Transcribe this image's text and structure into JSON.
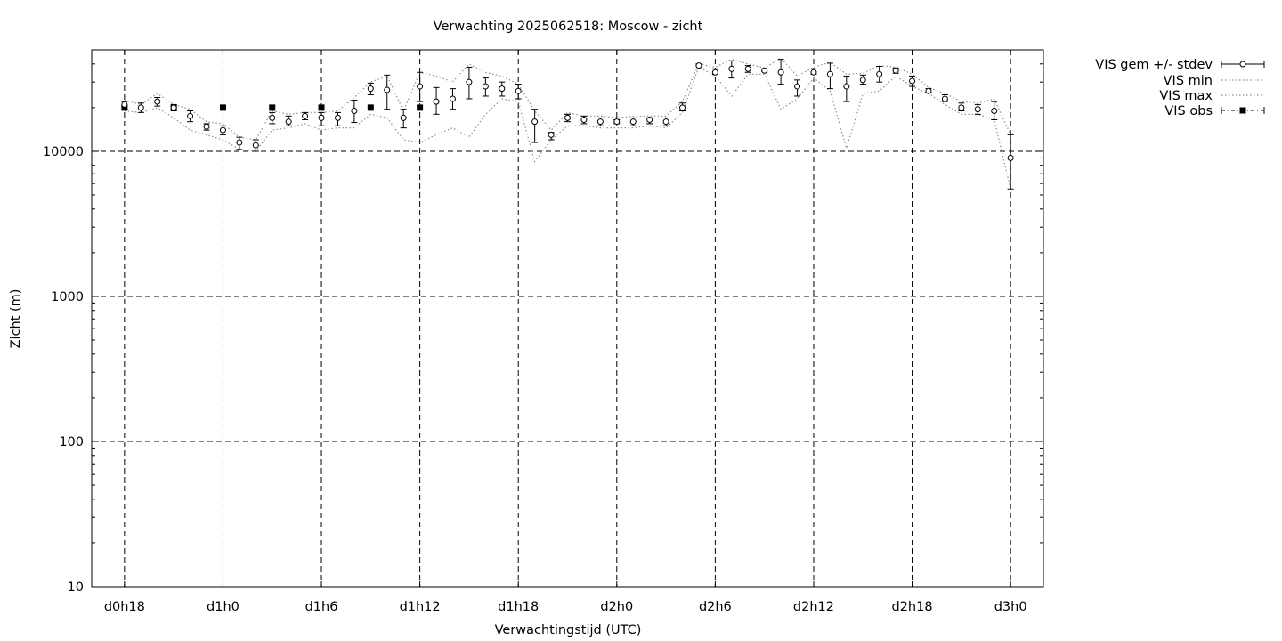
{
  "chart_data": {
    "type": "scatter",
    "title": "Verwachting 2025062518: Moscow - zicht",
    "xlabel": "Verwachtingstijd (UTC)",
    "ylabel": "Zicht (m)",
    "yscale": "log",
    "ylim": [
      10,
      50000
    ],
    "xlim": [
      -1,
      28
    ],
    "grid": true,
    "legend_position": "outside-top-right",
    "x_ticks": [
      {
        "x": 0,
        "label": "d0h18"
      },
      {
        "x": 3,
        "label": "d1h0"
      },
      {
        "x": 6,
        "label": "d1h6"
      },
      {
        "x": 9,
        "label": "d1h12"
      },
      {
        "x": 12,
        "label": "d1h18"
      },
      {
        "x": 15,
        "label": "d2h0"
      },
      {
        "x": 18,
        "label": "d2h6"
      },
      {
        "x": 21,
        "label": "d2h12"
      },
      {
        "x": 24,
        "label": "d2h18"
      },
      {
        "x": 27,
        "label": "d3h0"
      }
    ],
    "y_ticks": [
      {
        "y": 10,
        "label": "10"
      },
      {
        "y": 100,
        "label": "100"
      },
      {
        "y": 1000,
        "label": "1000"
      },
      {
        "y": 10000,
        "label": "10000"
      }
    ],
    "series": [
      {
        "name": "VIS gem +/- stdev",
        "style": "errorbars-open-circle",
        "x": [
          0,
          0.5,
          1,
          1.5,
          2,
          2.5,
          3,
          3.5,
          4,
          4.5,
          5,
          5.5,
          6,
          6.5,
          7,
          7.5,
          8,
          8.5,
          9,
          9.5,
          10,
          10.5,
          11,
          11.5,
          12,
          12.5,
          13,
          13.5,
          14,
          14.5,
          15,
          15.5,
          16,
          16.5,
          17,
          17.5,
          18,
          18.5,
          19,
          19.5,
          20,
          20.5,
          21,
          21.5,
          22,
          22.5,
          23,
          23.5,
          24,
          24.5,
          25,
          25.5,
          26,
          26.5,
          27
        ],
        "y": [
          21000,
          20000,
          22000,
          20000,
          17500,
          14800,
          14000,
          11500,
          11000,
          17000,
          16000,
          17500,
          17000,
          17000,
          19000,
          27000,
          26500,
          17000,
          28000,
          22000,
          23000,
          30000,
          28000,
          27000,
          26000,
          16000,
          13000,
          17000,
          16500,
          16000,
          16000,
          16000,
          16500,
          16000,
          20000,
          39000,
          35000,
          37000,
          37000,
          36000,
          35000,
          28000,
          35000,
          34000,
          28000,
          31000,
          34000,
          36000,
          30500,
          26000,
          23000,
          20000,
          19500,
          19000,
          9000
        ],
        "stdev_low": [
          19500,
          18500,
          20500,
          19000,
          16000,
          14000,
          13000,
          10300,
          10000,
          15500,
          15000,
          16500,
          15000,
          15000,
          15800,
          24500,
          19500,
          14500,
          22000,
          18000,
          19500,
          23000,
          24000,
          24000,
          23000,
          11500,
          12000,
          16000,
          15500,
          15000,
          15500,
          15000,
          15500,
          15000,
          19000,
          38500,
          34000,
          32000,
          35000,
          35500,
          29000,
          24000,
          34000,
          27000,
          22000,
          29000,
          30000,
          34500,
          28000,
          25500,
          22000,
          19000,
          18000,
          16500,
          5500
        ],
        "stdev_high": [
          22000,
          21500,
          23500,
          21000,
          19000,
          15500,
          15000,
          12500,
          12000,
          18500,
          17500,
          18500,
          18500,
          18500,
          22500,
          29500,
          33500,
          19500,
          35000,
          27500,
          27000,
          38000,
          32000,
          30000,
          29000,
          19500,
          13500,
          18000,
          17500,
          17000,
          16500,
          17000,
          17000,
          17000,
          21500,
          40000,
          37000,
          42000,
          39000,
          37000,
          43000,
          31000,
          37000,
          40500,
          33000,
          33500,
          38500,
          37500,
          33000,
          27000,
          24500,
          21500,
          21000,
          22000,
          13000
        ]
      },
      {
        "name": "VIS min",
        "style": "dotted",
        "x": [
          0,
          0.5,
          1,
          1.5,
          2,
          2.5,
          3,
          3.5,
          4,
          4.5,
          5,
          5.5,
          6,
          6.5,
          7,
          7.5,
          8,
          8.5,
          9,
          9.5,
          10,
          10.5,
          11,
          11.5,
          12,
          12.5,
          13,
          13.5,
          14,
          14.5,
          15,
          15.5,
          16,
          16.5,
          17,
          17.5,
          18,
          18.5,
          19,
          19.5,
          20,
          20.5,
          21,
          21.5,
          22,
          22.5,
          23,
          23.5,
          24,
          24.5,
          25,
          25.5,
          26,
          26.5,
          27
        ],
        "y": [
          19000,
          18500,
          20000,
          17000,
          14000,
          13000,
          12000,
          10300,
          10000,
          14000,
          14500,
          15500,
          14000,
          14500,
          14500,
          18000,
          17000,
          12000,
          11500,
          13000,
          14500,
          12500,
          18000,
          23000,
          22000,
          8500,
          12000,
          15000,
          15000,
          14500,
          14500,
          14500,
          15000,
          14500,
          18500,
          38000,
          33000,
          24000,
          34000,
          34000,
          19500,
          23000,
          32000,
          26000,
          10500,
          25000,
          26000,
          33000,
          28000,
          25000,
          21000,
          18000,
          18000,
          16500,
          5500
        ]
      },
      {
        "name": "VIS max",
        "style": "dotted",
        "x": [
          0,
          0.5,
          1,
          1.5,
          2,
          2.5,
          3,
          3.5,
          4,
          4.5,
          5,
          5.5,
          6,
          6.5,
          7,
          7.5,
          8,
          8.5,
          9,
          9.5,
          10,
          10.5,
          11,
          11.5,
          12,
          12.5,
          13,
          13.5,
          14,
          14.5,
          15,
          15.5,
          16,
          16.5,
          17,
          17.5,
          18,
          18.5,
          19,
          19.5,
          20,
          20.5,
          21,
          21.5,
          22,
          22.5,
          23,
          23.5,
          24,
          24.5,
          25,
          25.5,
          26,
          26.5,
          27
        ],
        "y": [
          22500,
          21000,
          25000,
          21000,
          19500,
          16000,
          15500,
          12500,
          12000,
          19000,
          18000,
          18500,
          18500,
          19000,
          23500,
          30000,
          33000,
          19000,
          35000,
          33000,
          30000,
          40000,
          35000,
          33000,
          29000,
          19000,
          14000,
          18500,
          17500,
          17500,
          17000,
          17500,
          17500,
          17500,
          22000,
          40000,
          38000,
          43000,
          40000,
          37500,
          44000,
          33000,
          38000,
          41000,
          34000,
          34500,
          39000,
          38000,
          34000,
          27500,
          25000,
          22000,
          21500,
          23000,
          13000
        ]
      },
      {
        "name": "VIS obs",
        "style": "filled-square",
        "x": [
          0,
          1.5,
          3,
          4.5,
          6,
          7.5,
          9
        ],
        "y": [
          20000,
          20000,
          20000,
          20000,
          20000,
          20000,
          20000
        ]
      }
    ]
  }
}
